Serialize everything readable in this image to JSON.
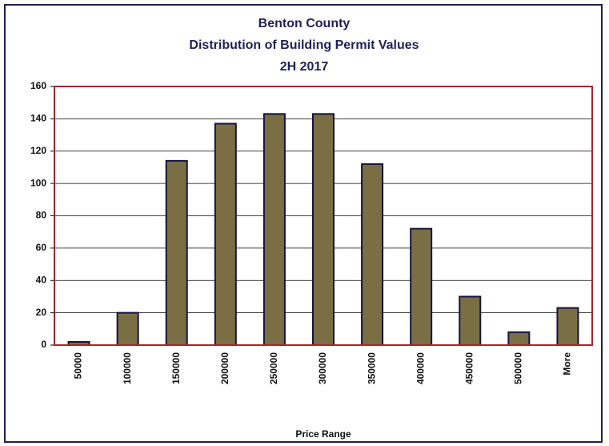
{
  "chart_data": {
    "type": "bar",
    "title": [
      "Benton County",
      "Distribution of Building Permit Values",
      "2H 2017"
    ],
    "xlabel": "Price Range",
    "categories": [
      "50000",
      "100000",
      "150000",
      "200000",
      "250000",
      "300000",
      "350000",
      "400000",
      "450000",
      "500000",
      "More"
    ],
    "values": [
      2,
      20,
      114,
      137,
      143,
      143,
      112,
      72,
      30,
      8,
      23
    ],
    "color": "#7a6e45",
    "ylim": [
      0,
      160
    ],
    "yticks": [
      0,
      20,
      40,
      60,
      80,
      100,
      120,
      140,
      160
    ],
    "grid": true
  }
}
